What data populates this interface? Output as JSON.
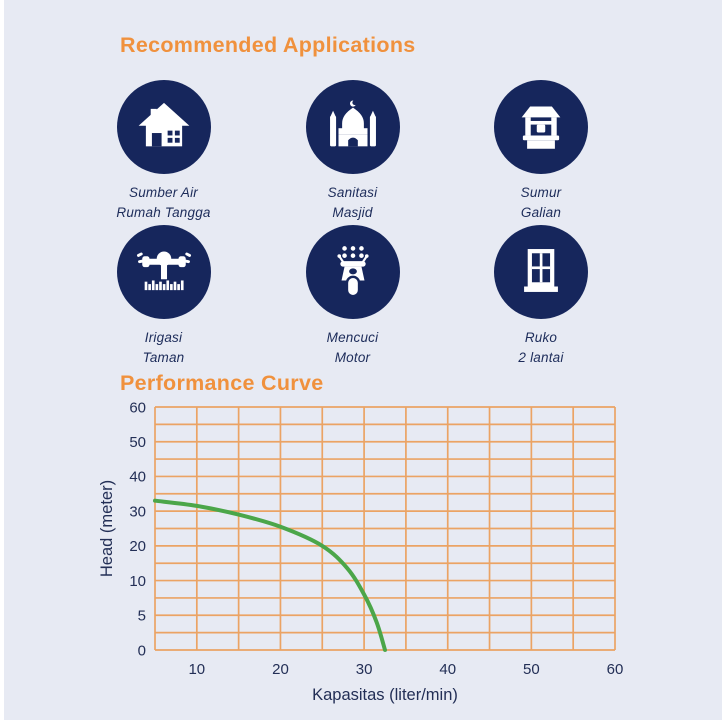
{
  "colors": {
    "background": "#e7eaf3",
    "heading_orange": "#f0913d",
    "icon_navy": "#16265c",
    "label_navy": "#1d2c5a",
    "grid_orange": "#eba364",
    "curve_green": "#4ba649",
    "tick_navy": "#232f56"
  },
  "applications": {
    "title": "Recommended Applications",
    "items": [
      {
        "icon": "house-icon",
        "lines": [
          "Sumber Air",
          "Rumah Tangga"
        ]
      },
      {
        "icon": "mosque-icon",
        "lines": [
          "Sanitasi",
          "Masjid"
        ]
      },
      {
        "icon": "well-icon",
        "lines": [
          "Sumur",
          "Galian"
        ]
      },
      {
        "icon": "sprinkler-icon",
        "lines": [
          "Irigasi",
          "Taman"
        ]
      },
      {
        "icon": "scooter-icon",
        "lines": [
          "Mencuci",
          "Motor"
        ]
      },
      {
        "icon": "window-icon",
        "lines": [
          "Ruko",
          "2 lantai"
        ]
      }
    ]
  },
  "performance": {
    "title": "Performance Curve"
  },
  "chart_data": {
    "type": "line",
    "title": "Performance Curve",
    "xlabel": "Kapasitas (liter/min)",
    "ylabel": "Head (meter)",
    "x_ticks": [
      10,
      20,
      30,
      40,
      50,
      60
    ],
    "y_ticks": [
      60,
      50,
      40,
      30,
      20,
      10,
      5,
      0
    ],
    "xlim": [
      5,
      60
    ],
    "ylim": [
      0,
      60
    ],
    "grid": true,
    "legend": "none",
    "series": [
      {
        "name": "pump-performance-curve",
        "color": "#4ba649",
        "points": [
          [
            5,
            33
          ],
          [
            10,
            31.5
          ],
          [
            15,
            29
          ],
          [
            20,
            25.5
          ],
          [
            25,
            20
          ],
          [
            28,
            13.5
          ],
          [
            30,
            8
          ],
          [
            31.5,
            4
          ],
          [
            32.5,
            0
          ]
        ]
      }
    ]
  }
}
